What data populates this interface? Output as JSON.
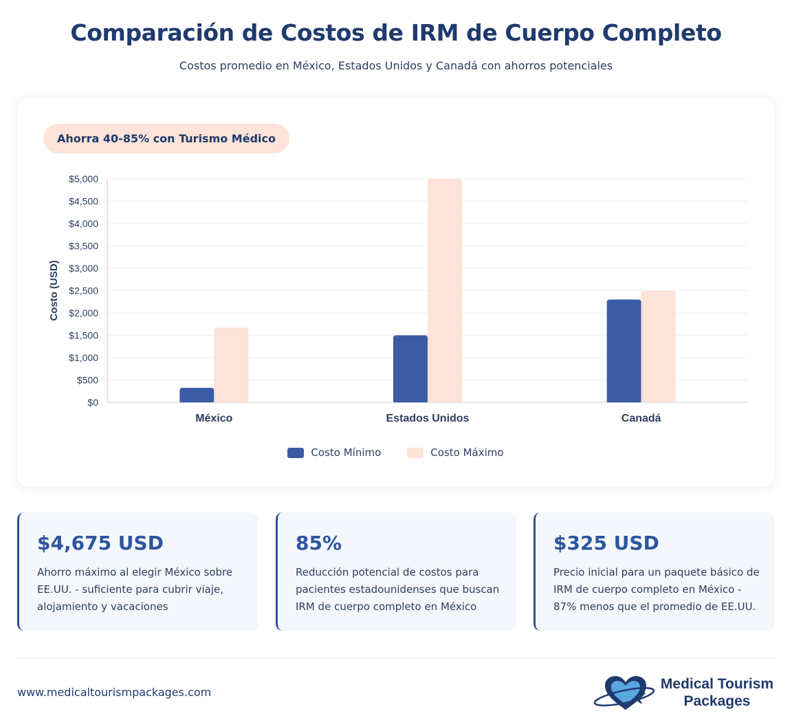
{
  "header": {
    "title": "Comparación de Costos de IRM de Cuerpo Completo",
    "subtitle": "Costos promedio en México, Estados Unidos y Canadá con ahorros potenciales"
  },
  "badge": {
    "label": "Ahorra 40-85% con Turismo Médico"
  },
  "chart_data": {
    "type": "bar",
    "title": "",
    "xlabel": "",
    "ylabel": "Costo (USD)",
    "categories": [
      "México",
      "Estados Unidos",
      "Canadá"
    ],
    "series": [
      {
        "name": "Costo Mínimo",
        "color": "#3b5ba5",
        "values": [
          325,
          1500,
          2300
        ]
      },
      {
        "name": "Costo Máximo",
        "color": "#fde3d8",
        "values": [
          1675,
          5000,
          2500
        ]
      }
    ],
    "ylim": [
      0,
      5000
    ],
    "yticks": [
      0,
      500,
      1000,
      1500,
      2000,
      2500,
      3000,
      3500,
      4000,
      4500,
      5000
    ],
    "ytick_labels": [
      "$0",
      "$500",
      "$1,000",
      "$1,500",
      "$2,000",
      "$2,500",
      "$3,000",
      "$3,500",
      "$4,000",
      "$4,500",
      "$5,000"
    ],
    "grid": true,
    "legend_position": "bottom"
  },
  "stats": [
    {
      "value": "$4,675 USD",
      "description": "Ahorro máximo al elegir México sobre EE.UU. - suficiente para cubrir viaje, alojamiento y vacaciones"
    },
    {
      "value": "85%",
      "description": "Reducción potencial de costos para pacientes estadounidenses que buscan IRM de cuerpo completo en México"
    },
    {
      "value": "$325 USD",
      "description": "Precio inicial para un paquete básico de IRM de cuerpo completo en México - 87% menos que el promedio de EE.UU."
    }
  ],
  "footer": {
    "url": "www.medicaltourismpackages.com",
    "brand_line1": "Medical Tourism",
    "brand_line2": "Packages"
  },
  "colors": {
    "primary": "#1f3a6e",
    "accent": "#3b5ba5",
    "peach": "#fde3d8",
    "logo_light": "#5aa7e0"
  }
}
